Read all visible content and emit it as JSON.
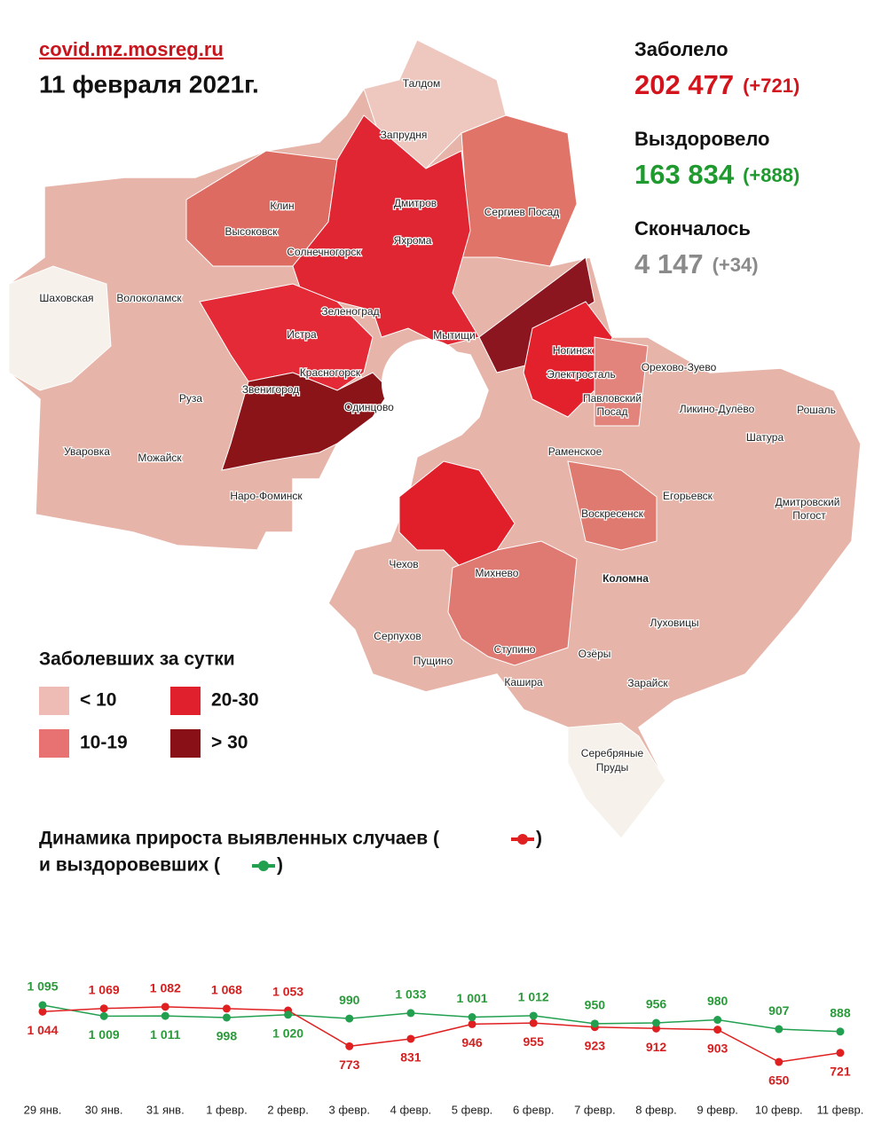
{
  "header": {
    "site": "covid.mz.mosreg.ru",
    "date": "11 февраля 2021г."
  },
  "stats": [
    {
      "label": "Заболело",
      "value": "202 477",
      "delta": "(+721)",
      "color": "#d4141c"
    },
    {
      "label": "Выздоровело",
      "value": "163 834",
      "delta": "(+888)",
      "color": "#1f9a2e"
    },
    {
      "label": "Скончалось",
      "value": "4 147",
      "delta": "(+34)",
      "color": "#8a8a8a"
    }
  ],
  "legend": {
    "title": "Заболевших за сутки",
    "items": [
      {
        "label": "< 10",
        "color": "#eebcb4"
      },
      {
        "label": "20-30",
        "color": "#e0202c"
      },
      {
        "label": "10-19",
        "color": "#e87272"
      },
      {
        "label": "> 30",
        "color": "#8a1018"
      }
    ]
  },
  "map": {
    "labels": [
      "Талдом",
      "Запрудня",
      "Клин",
      "Высоковск",
      "Дмитров",
      "Яхрома",
      "Сергиев Посад",
      "Солнечногорск",
      "Шаховская",
      "Волоколамск",
      "Зеленоград",
      "Истра",
      "Мытищи",
      "Ногинск",
      "Красногорск",
      "Электросталь",
      "Орехово-Зуево",
      "Павловский",
      "Посад",
      "Звенигород",
      "Одинцово",
      "Руза",
      "Ликино-Дулёво",
      "Рошаль",
      "Шатура",
      "Раменское",
      "Уваровка",
      "Можайск",
      "Наро-Фоминск",
      "Егорьевск",
      "Дмитровский",
      "Погост",
      "Воскресенск",
      "Чехов",
      "Михнево",
      "Коломна",
      "Серпухов",
      "Луховицы",
      "Пущино",
      "Ступино",
      "Озёры",
      "Кашира",
      "Зарайск",
      "Серебряные",
      "Пруды"
    ]
  },
  "chart_data": {
    "type": "line",
    "title_parts": [
      "Динамика прироста выявленных случаев (",
      ")",
      "и выздоровевших (",
      ")"
    ],
    "categories": [
      "29 янв.",
      "30 янв.",
      "31 янв.",
      "1 февр.",
      "2 февр.",
      "3 февр.",
      "4 февр.",
      "5 февр.",
      "6 февр.",
      "7 февр.",
      "8 февр.",
      "9 февр.",
      "10 февр.",
      "11 февр."
    ],
    "ylim": [
      400,
      1300
    ],
    "series": [
      {
        "color": "#e02020",
        "label_color": "#d42020",
        "values": [
          1044,
          1069,
          1082,
          1068,
          1053,
          773,
          831,
          946,
          955,
          923,
          912,
          903,
          650,
          721
        ],
        "value_labels": [
          "1 044",
          "1 069",
          "1 082",
          "1 068",
          "1 053",
          "773",
          "831",
          "946",
          "955",
          "923",
          "912",
          "903",
          "650",
          "721"
        ]
      },
      {
        "color": "#22a050",
        "label_color": "#2a9a3a",
        "values": [
          1095,
          1009,
          1011,
          998,
          1020,
          990,
          1033,
          1001,
          1012,
          950,
          956,
          980,
          907,
          888
        ],
        "value_labels": [
          "1 095",
          "1 009",
          "1 011",
          "998",
          "1 020",
          "990",
          "1 033",
          "1 001",
          "1 012",
          "950",
          "956",
          "980",
          "907",
          "888"
        ]
      }
    ]
  }
}
